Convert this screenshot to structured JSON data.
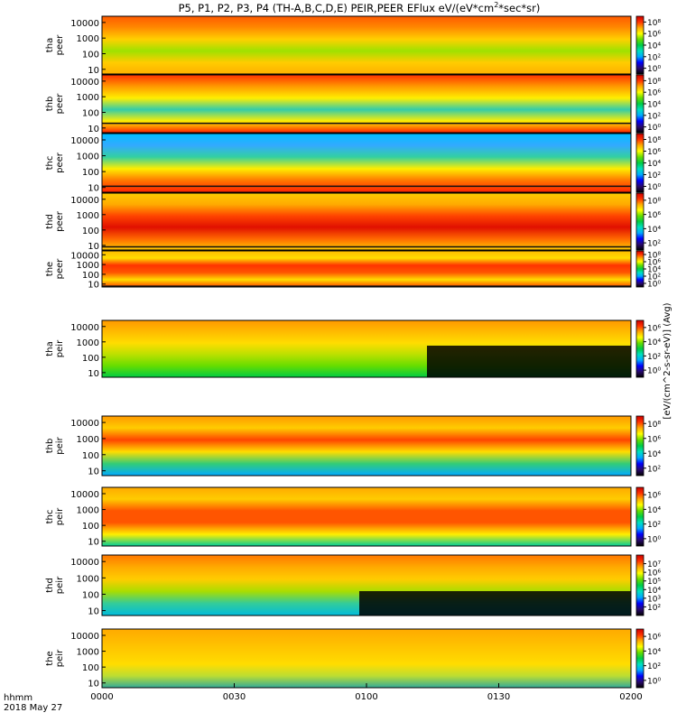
{
  "chart_data": {
    "type": "heatmap",
    "title": "P5, P1, P2, P3, P4 (TH-A,B,C,D,E) PEIR,PEER EFlux eV/(eV*cm",
    "title_sup": "2",
    "title_tail": "*sec*sr)",
    "x_axis": {
      "units_label": "hhmm",
      "date_label": "2018 May 27",
      "ticks": [
        "0000",
        "0030",
        "0100",
        "0130",
        "0200"
      ],
      "range_minutes": [
        0,
        120
      ]
    },
    "y_ticks": [
      "10000",
      "1000",
      "100",
      "10"
    ],
    "y_range_eV": [
      5,
      25000
    ],
    "y_scale": "log",
    "colorbar_units": "[eV/(cm^2-s-sr-eV)] (Avg)",
    "panels": [
      {
        "probe": "tha",
        "species": "peer",
        "cbar_labels": [
          "10⁸",
          "10⁶",
          "10⁴",
          "10²",
          "10⁰"
        ],
        "cbar_min_exp": -1,
        "cbar_max_exp": 9,
        "has_dark_trace": false
      },
      {
        "probe": "thb",
        "species": "peer",
        "cbar_labels": [
          "10⁸",
          "10⁶",
          "10⁴",
          "10²",
          "10⁰"
        ],
        "cbar_min_exp": -1,
        "cbar_max_exp": 9,
        "has_dark_trace": true,
        "trace_level_eV": 20
      },
      {
        "probe": "thc",
        "species": "peer",
        "cbar_labels": [
          "10⁸",
          "10⁶",
          "10⁴",
          "10²",
          "10⁰"
        ],
        "cbar_min_exp": -1,
        "cbar_max_exp": 9,
        "has_dark_trace": true,
        "trace_level_eV": 12
      },
      {
        "probe": "thd",
        "species": "peer",
        "cbar_labels": [
          "10⁸",
          "10⁶",
          "10⁴",
          "10²"
        ],
        "cbar_min_exp": 1,
        "cbar_max_exp": 9,
        "has_dark_trace": true,
        "trace_level_eV": 8
      },
      {
        "probe": "the",
        "species": "peer",
        "cbar_labels": [
          "10⁸",
          "10⁶",
          "10⁴",
          "10²",
          "10⁰"
        ],
        "cbar_min_exp": -1,
        "cbar_max_exp": 9,
        "has_dark_trace": true,
        "trace_level_eV": 6
      },
      {
        "probe": "tha",
        "species": "peir",
        "cbar_labels": [
          "10⁶",
          "10⁴",
          "10²",
          "10⁰"
        ],
        "cbar_min_exp": -1,
        "cbar_max_exp": 7,
        "has_dark_trace": false
      },
      {
        "probe": "thb",
        "species": "peir",
        "cbar_labels": [
          "10⁸",
          "10⁶",
          "10⁴",
          "10²"
        ],
        "cbar_min_exp": 1,
        "cbar_max_exp": 9,
        "has_dark_trace": false
      },
      {
        "probe": "thc",
        "species": "peir",
        "cbar_labels": [
          "10⁶",
          "10⁴",
          "10²",
          "10⁰"
        ],
        "cbar_min_exp": -1,
        "cbar_max_exp": 7,
        "has_dark_trace": false
      },
      {
        "probe": "thd",
        "species": "peir",
        "cbar_labels": [
          "10⁷",
          "10⁶",
          "10⁵",
          "10⁴",
          "10³",
          "10²"
        ],
        "cbar_min_exp": 1,
        "cbar_max_exp": 8,
        "has_dark_trace": false
      },
      {
        "probe": "the",
        "species": "peir",
        "cbar_labels": [
          "10⁶",
          "10⁴",
          "10²",
          "10⁰"
        ],
        "cbar_min_exp": -1,
        "cbar_max_exp": 7,
        "has_dark_trace": false
      }
    ],
    "colormap": [
      "#000000",
      "#2a0a6e",
      "#0000ff",
      "#00aaff",
      "#00e0c0",
      "#00cc44",
      "#66dd00",
      "#ffff00",
      "#ffaa00",
      "#ff3300",
      "#cc0000"
    ]
  }
}
